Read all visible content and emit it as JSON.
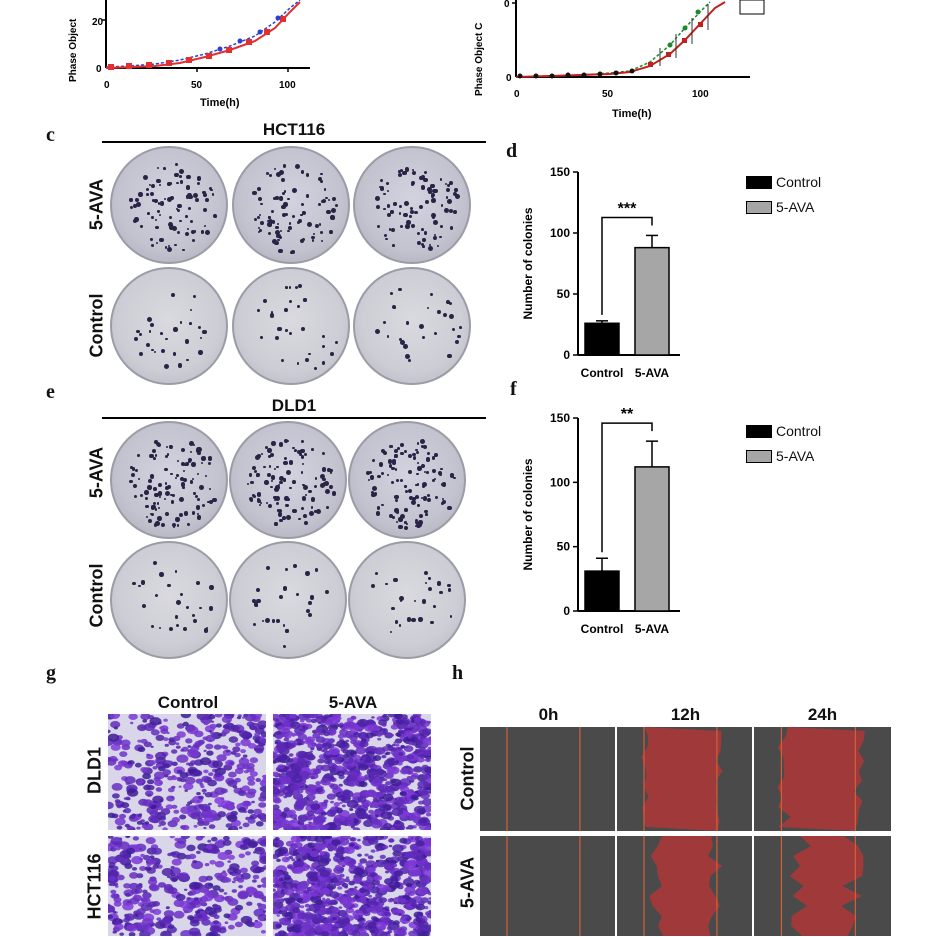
{
  "panels": {
    "a": {
      "xlabel": "Time(h)",
      "ylabel": "Phase Object",
      "ticks_x": [
        "0",
        "50",
        "100"
      ],
      "ticks_y": [
        "20",
        "0"
      ]
    },
    "b": {
      "xlabel": "Time(h)",
      "ylabel": "Phase Object C",
      "ticks_x": [
        "0",
        "50",
        "100"
      ],
      "ticks_y": [
        "0",
        "0"
      ]
    },
    "c": {
      "letter": "c",
      "title": "HCT116",
      "row_labels": [
        "5-AVA",
        "Control"
      ]
    },
    "d": {
      "letter": "d",
      "significance": "***"
    },
    "e": {
      "letter": "e",
      "title": "DLD1",
      "row_labels": [
        "5-AVA",
        "Control"
      ]
    },
    "f": {
      "letter": "f",
      "significance": "**"
    },
    "g": {
      "letter": "g",
      "col_labels": [
        "Control",
        "5-AVA"
      ],
      "row_labels": [
        "DLD1",
        "HCT116"
      ]
    },
    "h": {
      "letter": "h",
      "col_labels": [
        "0h",
        "12h",
        "24h"
      ],
      "row_labels": [
        "Control",
        "5-AVA"
      ]
    }
  },
  "legend": {
    "control": "Control",
    "ava": "5-AVA"
  },
  "colors": {
    "control": "#000000",
    "ava": "#a6a6a6",
    "wound": "#a03a3a",
    "stain": "#5a2a9a"
  },
  "chart_data": [
    {
      "type": "bar",
      "panel": "d",
      "categories": [
        "Control",
        "5-AVA"
      ],
      "values": [
        26,
        88
      ],
      "errors": [
        2,
        10
      ],
      "ylabel": "Number of colonies",
      "yticks": [
        "0",
        "50",
        "100",
        "150"
      ],
      "ylim": [
        0,
        150
      ],
      "legend": [
        "Control",
        "5-AVA"
      ]
    },
    {
      "type": "bar",
      "panel": "f",
      "categories": [
        "Control",
        "5-AVA"
      ],
      "values": [
        31,
        112
      ],
      "errors": [
        10,
        20
      ],
      "ylabel": "Number of colonies",
      "yticks": [
        "0",
        "50",
        "100",
        "150"
      ],
      "ylim": [
        0,
        150
      ],
      "legend": [
        "Control",
        "5-AVA"
      ]
    }
  ]
}
